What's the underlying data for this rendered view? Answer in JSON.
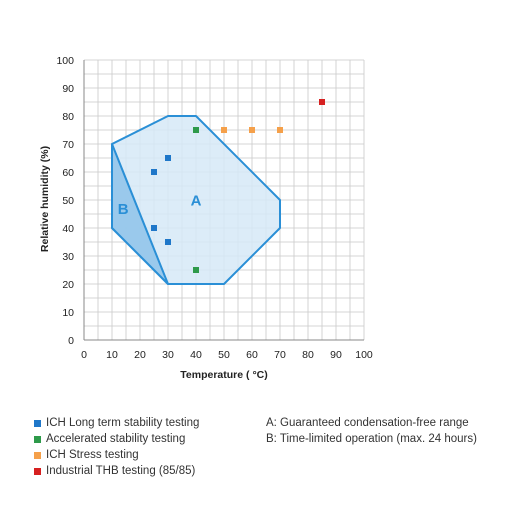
{
  "chart_data": {
    "type": "scatter",
    "xlabel": "Temperature ( °C)",
    "ylabel": "Relative humidity (%)",
    "xlim": [
      0,
      100
    ],
    "ylim": [
      0,
      100
    ],
    "x_ticks": [
      0,
      10,
      20,
      30,
      40,
      50,
      60,
      70,
      80,
      90,
      100
    ],
    "y_ticks": [
      0,
      10,
      20,
      30,
      40,
      50,
      60,
      70,
      80,
      90,
      100
    ],
    "grid": true,
    "minor_grid_step": 5,
    "series": [
      {
        "name": "ICH Long term stability testing",
        "color": "#1f77c9",
        "points": [
          [
            25,
            60
          ],
          [
            30,
            65
          ],
          [
            25,
            40
          ],
          [
            30,
            35
          ]
        ]
      },
      {
        "name": "Accelerated stability testing",
        "color": "#2e9a4a",
        "points": [
          [
            40,
            75
          ],
          [
            40,
            25
          ]
        ]
      },
      {
        "name": "ICH Stress testing",
        "color": "#f5a04a",
        "points": [
          [
            50,
            75
          ],
          [
            60,
            75
          ],
          [
            70,
            75
          ]
        ]
      },
      {
        "name": "Industrial THB testing (85/85)",
        "color": "#d62020",
        "points": [
          [
            85,
            85
          ]
        ]
      }
    ],
    "regions": [
      {
        "label": "A",
        "description": "A: Guaranteed condensation-free range",
        "polygon": [
          [
            10,
            70
          ],
          [
            30,
            80
          ],
          [
            40,
            80
          ],
          [
            70,
            50
          ],
          [
            70,
            40
          ],
          [
            50,
            20
          ],
          [
            30,
            20
          ],
          [
            10,
            40
          ]
        ],
        "fill": "#d6e9f7",
        "stroke": "#2a8fd6",
        "label_at": [
          40,
          48
        ]
      },
      {
        "label": "B",
        "description": "B: Time-limited operation (max. 24 hours)",
        "polygon": [
          [
            10,
            70
          ],
          [
            10,
            40
          ],
          [
            30,
            20
          ]
        ],
        "fill": "#8ec3ea",
        "stroke": "#2a8fd6",
        "label_at": [
          14,
          45
        ]
      }
    ]
  }
}
